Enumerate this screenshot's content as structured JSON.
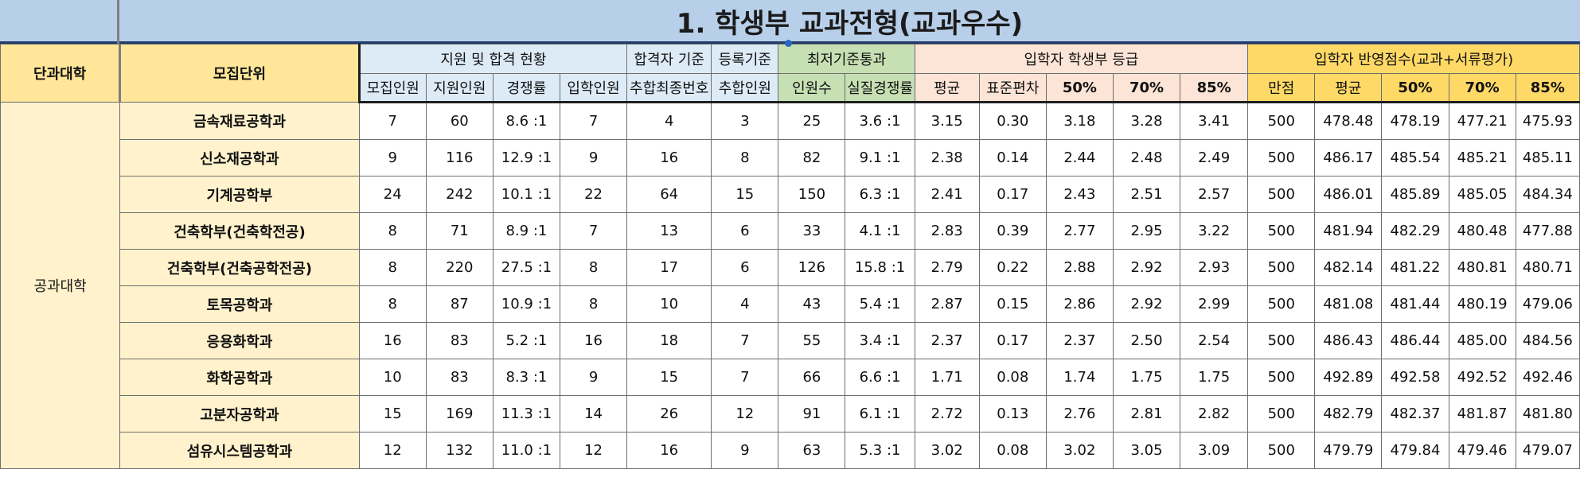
{
  "title": "1. 학생부 교과전형(교과우수)",
  "headers": {
    "college": "단과대학",
    "unit": "모집단위",
    "groups": {
      "apply": "지원 및 합격 현황",
      "pass_criteria": "합격자 기준",
      "reg_criteria": "등록기준",
      "min_pass": "최저기준통과",
      "grade": "입학자 학생부 등급",
      "score": "입학자 반영점수(교과+서류평가)"
    },
    "sub": {
      "recruit": "모집인원",
      "applicants": "지원인원",
      "ratio": "경쟁률",
      "admitted": "입학인원",
      "waitlist_last": "추합최종번호",
      "waitlist_count": "추합인원",
      "pass_count": "인원수",
      "real_ratio": "실질경쟁률",
      "g_avg": "평균",
      "g_sd": "표준편차",
      "g_50": "50%",
      "g_70": "70%",
      "g_85": "85%",
      "s_full": "만점",
      "s_avg": "평균",
      "s_50": "50%",
      "s_70": "70%",
      "s_85": "85%"
    }
  },
  "college_name": "공과대학",
  "rows": [
    {
      "unit": "금속재료공학과",
      "recruit": "7",
      "applicants": "60",
      "ratio": "8.6 :1",
      "admitted": "7",
      "waitlist_last": "4",
      "waitlist_count": "3",
      "pass_count": "25",
      "real_ratio": "3.6 :1",
      "g_avg": "3.15",
      "g_sd": "0.30",
      "g_50": "3.18",
      "g_70": "3.28",
      "g_85": "3.41",
      "s_full": "500",
      "s_avg": "478.48",
      "s_50": "478.19",
      "s_70": "477.21",
      "s_85": "475.93"
    },
    {
      "unit": "신소재공학과",
      "recruit": "9",
      "applicants": "116",
      "ratio": "12.9 :1",
      "admitted": "9",
      "waitlist_last": "16",
      "waitlist_count": "8",
      "pass_count": "82",
      "real_ratio": "9.1 :1",
      "g_avg": "2.38",
      "g_sd": "0.14",
      "g_50": "2.44",
      "g_70": "2.48",
      "g_85": "2.49",
      "s_full": "500",
      "s_avg": "486.17",
      "s_50": "485.54",
      "s_70": "485.21",
      "s_85": "485.11"
    },
    {
      "unit": "기계공학부",
      "recruit": "24",
      "applicants": "242",
      "ratio": "10.1 :1",
      "admitted": "22",
      "waitlist_last": "64",
      "waitlist_count": "15",
      "pass_count": "150",
      "real_ratio": "6.3 :1",
      "g_avg": "2.41",
      "g_sd": "0.17",
      "g_50": "2.43",
      "g_70": "2.51",
      "g_85": "2.57",
      "s_full": "500",
      "s_avg": "486.01",
      "s_50": "485.89",
      "s_70": "485.05",
      "s_85": "484.34"
    },
    {
      "unit": "건축학부(건축학전공)",
      "recruit": "8",
      "applicants": "71",
      "ratio": "8.9 :1",
      "admitted": "7",
      "waitlist_last": "13",
      "waitlist_count": "6",
      "pass_count": "33",
      "real_ratio": "4.1 :1",
      "g_avg": "2.83",
      "g_sd": "0.39",
      "g_50": "2.77",
      "g_70": "2.95",
      "g_85": "3.22",
      "s_full": "500",
      "s_avg": "481.94",
      "s_50": "482.29",
      "s_70": "480.48",
      "s_85": "477.88"
    },
    {
      "unit": "건축학부(건축공학전공)",
      "recruit": "8",
      "applicants": "220",
      "ratio": "27.5 :1",
      "admitted": "8",
      "waitlist_last": "17",
      "waitlist_count": "6",
      "pass_count": "126",
      "real_ratio": "15.8 :1",
      "g_avg": "2.79",
      "g_sd": "0.22",
      "g_50": "2.88",
      "g_70": "2.92",
      "g_85": "2.93",
      "s_full": "500",
      "s_avg": "482.14",
      "s_50": "481.22",
      "s_70": "480.81",
      "s_85": "480.71"
    },
    {
      "unit": "토목공학과",
      "recruit": "8",
      "applicants": "87",
      "ratio": "10.9 :1",
      "admitted": "8",
      "waitlist_last": "10",
      "waitlist_count": "4",
      "pass_count": "43",
      "real_ratio": "5.4 :1",
      "g_avg": "2.87",
      "g_sd": "0.15",
      "g_50": "2.86",
      "g_70": "2.92",
      "g_85": "2.99",
      "s_full": "500",
      "s_avg": "481.08",
      "s_50": "481.44",
      "s_70": "480.19",
      "s_85": "479.06"
    },
    {
      "unit": "응용화학과",
      "recruit": "16",
      "applicants": "83",
      "ratio": "5.2 :1",
      "admitted": "16",
      "waitlist_last": "18",
      "waitlist_count": "7",
      "pass_count": "55",
      "real_ratio": "3.4 :1",
      "g_avg": "2.37",
      "g_sd": "0.17",
      "g_50": "2.37",
      "g_70": "2.50",
      "g_85": "2.54",
      "s_full": "500",
      "s_avg": "486.43",
      "s_50": "486.44",
      "s_70": "485.00",
      "s_85": "484.56"
    },
    {
      "unit": "화학공학과",
      "recruit": "10",
      "applicants": "83",
      "ratio": "8.3 :1",
      "admitted": "9",
      "waitlist_last": "15",
      "waitlist_count": "7",
      "pass_count": "66",
      "real_ratio": "6.6 :1",
      "g_avg": "1.71",
      "g_sd": "0.08",
      "g_50": "1.74",
      "g_70": "1.75",
      "g_85": "1.75",
      "s_full": "500",
      "s_avg": "492.89",
      "s_50": "492.58",
      "s_70": "492.52",
      "s_85": "492.46"
    },
    {
      "unit": "고분자공학과",
      "recruit": "15",
      "applicants": "169",
      "ratio": "11.3 :1",
      "admitted": "14",
      "waitlist_last": "26",
      "waitlist_count": "12",
      "pass_count": "91",
      "real_ratio": "6.1 :1",
      "g_avg": "2.72",
      "g_sd": "0.13",
      "g_50": "2.76",
      "g_70": "2.81",
      "g_85": "2.82",
      "s_full": "500",
      "s_avg": "482.79",
      "s_50": "482.37",
      "s_70": "481.87",
      "s_85": "481.80"
    },
    {
      "unit": "섬유시스템공학과",
      "recruit": "12",
      "applicants": "132",
      "ratio": "11.0 :1",
      "admitted": "12",
      "waitlist_last": "16",
      "waitlist_count": "9",
      "pass_count": "63",
      "real_ratio": "5.3 :1",
      "g_avg": "3.02",
      "g_sd": "0.08",
      "g_50": "3.02",
      "g_70": "3.05",
      "g_85": "3.09",
      "s_full": "500",
      "s_avg": "479.79",
      "s_50": "479.84",
      "s_70": "479.46",
      "s_85": "479.07"
    }
  ]
}
